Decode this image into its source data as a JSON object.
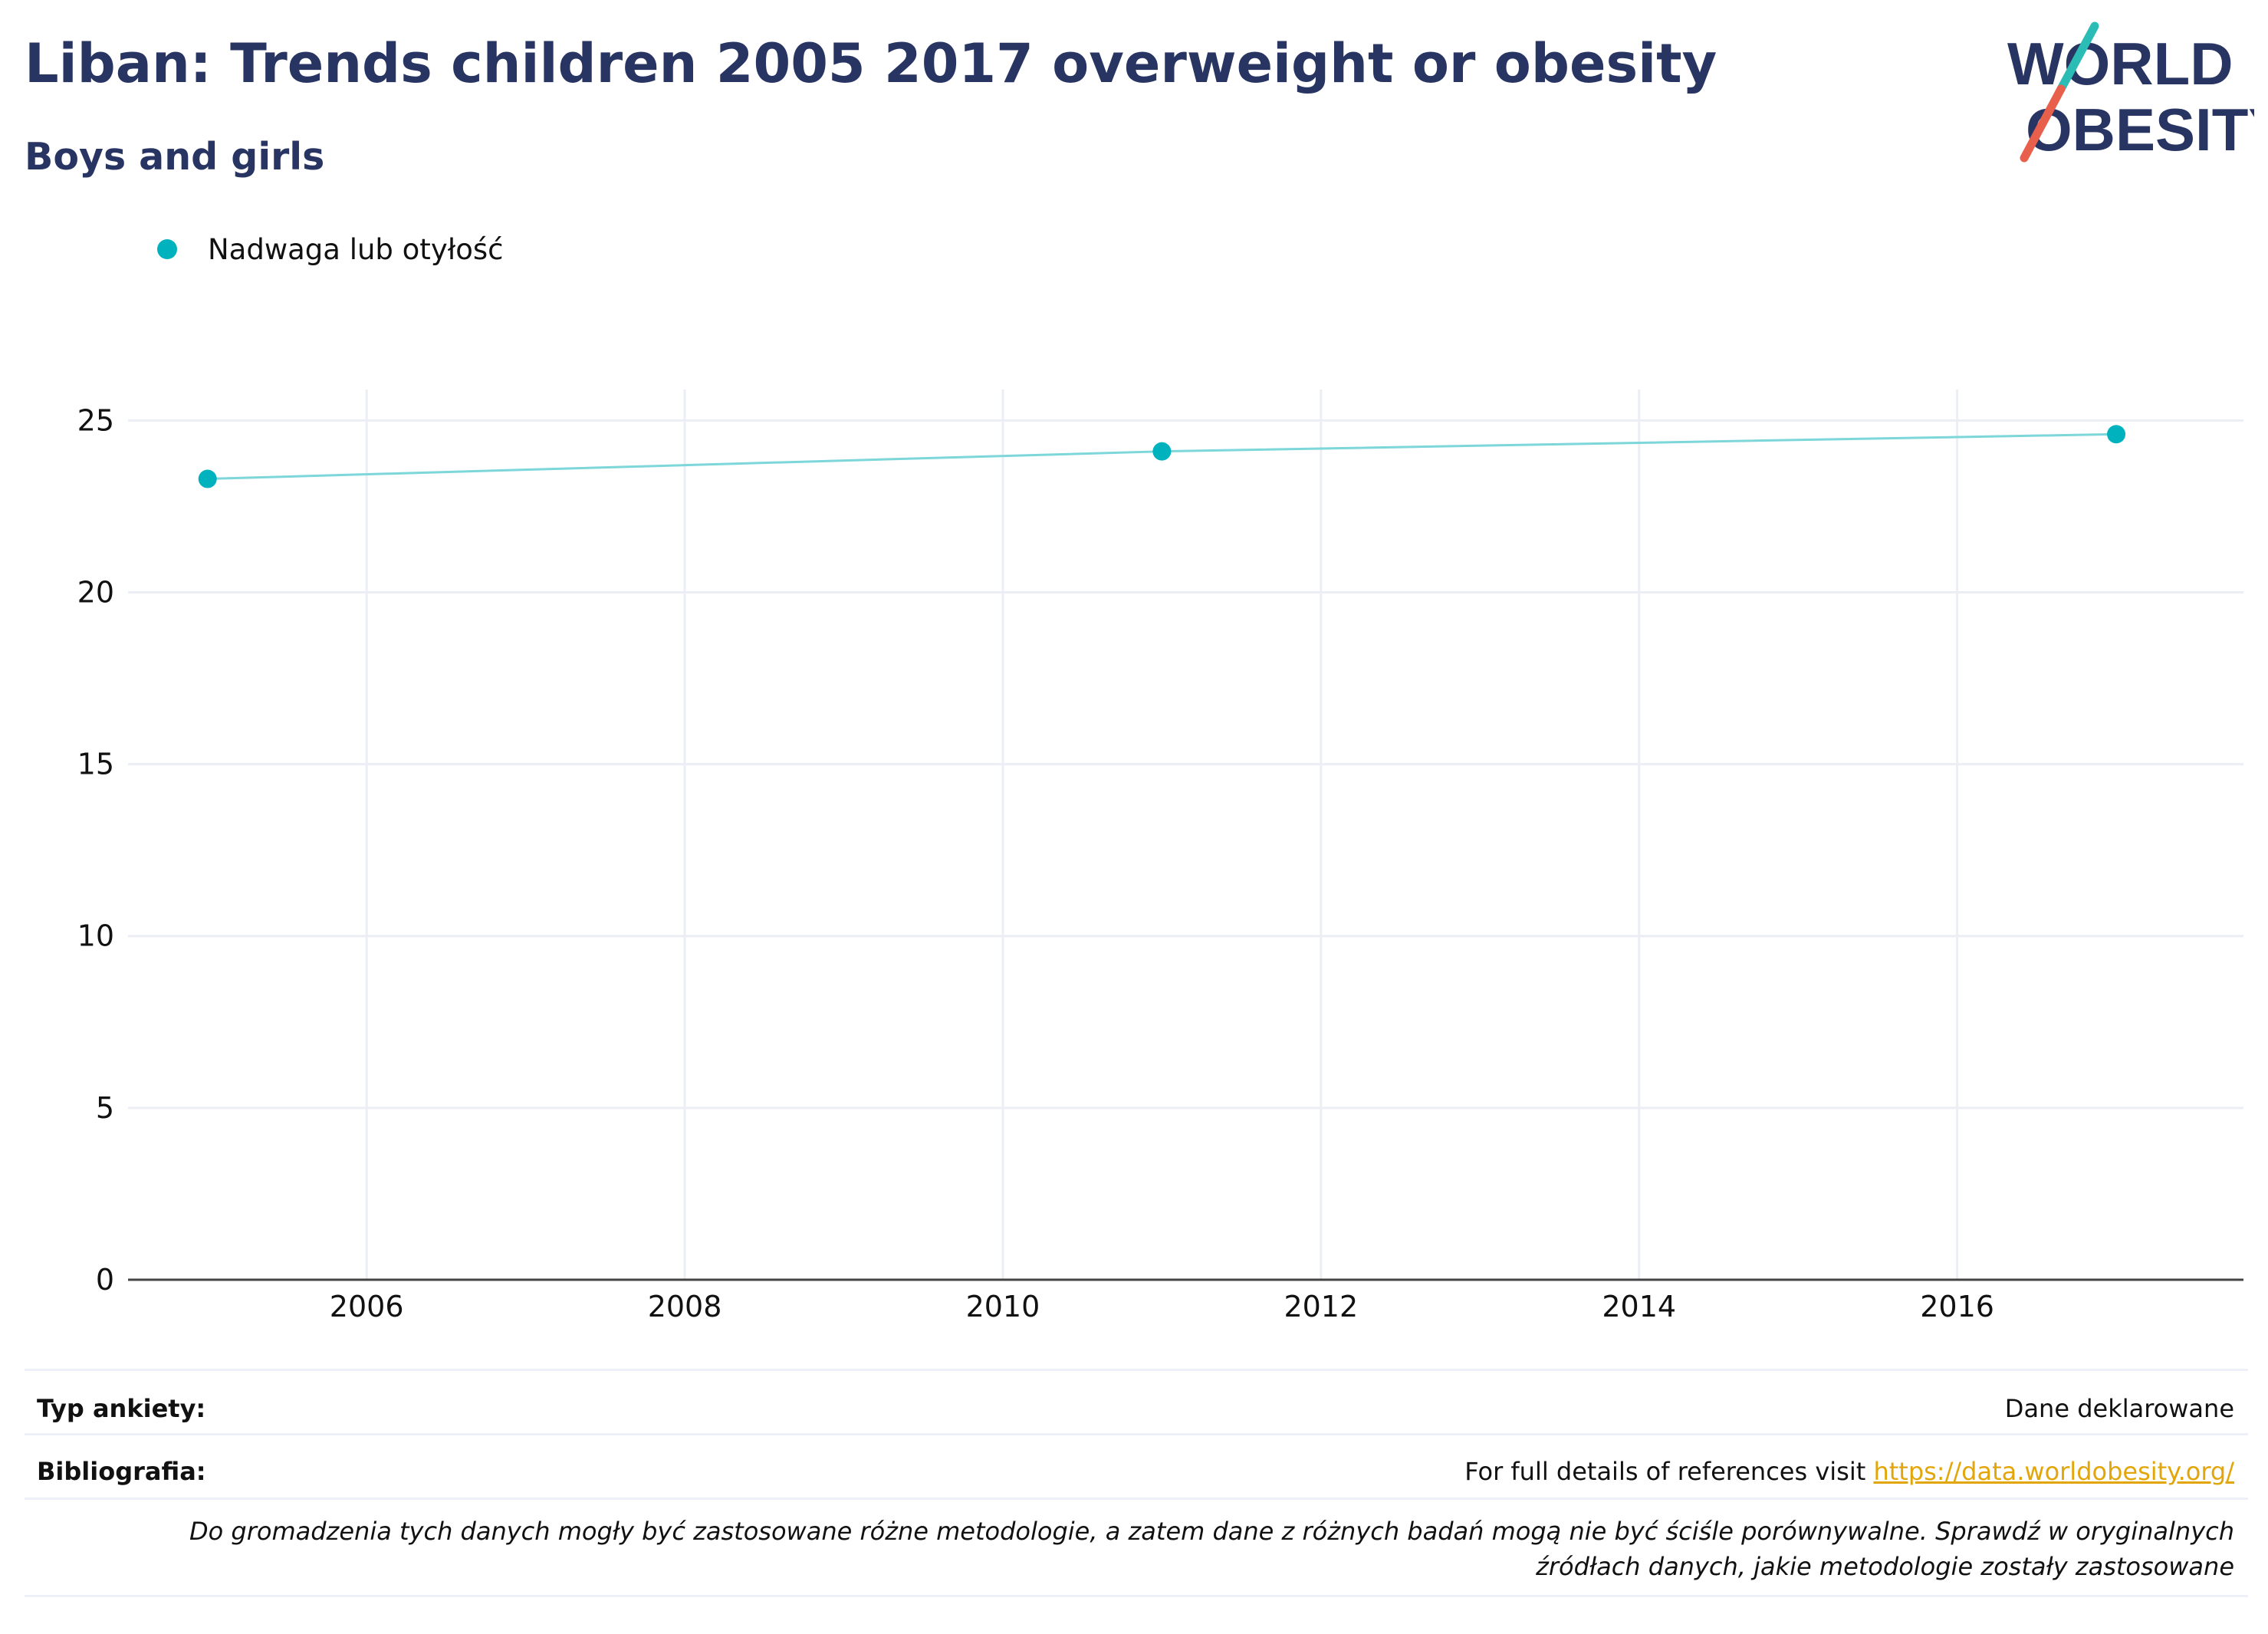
{
  "header": {
    "title": "Liban: Trends children 2005 2017 overweight or obesity",
    "subtitle": "Boys and girls"
  },
  "logo": {
    "line1": "WORLD",
    "line2": "OBESITY"
  },
  "colors": {
    "title": "#283563",
    "series": "#00b2bd",
    "line": "#7dd6da",
    "link": "#e3a60a",
    "logo_teal": "#2bbdb5",
    "logo_red": "#e8604c"
  },
  "chart_data": {
    "type": "line",
    "title": "Liban: Trends children 2005 2017 overweight or obesity",
    "subtitle": "Boys and girls",
    "series": [
      {
        "name": "Nadwaga lub otyłość",
        "x": [
          2005,
          2011,
          2017
        ],
        "y": [
          23.3,
          24.1,
          24.6
        ]
      }
    ],
    "xlim": [
      2004.5,
      2017.8
    ],
    "ylim": [
      0,
      25.9
    ],
    "xticks": [
      "2006",
      "2008",
      "2010",
      "2012",
      "2014",
      "2016"
    ],
    "yticks": [
      "0",
      "5",
      "10",
      "15",
      "20",
      "25"
    ],
    "grid": true,
    "legend": "top-left"
  },
  "info": {
    "survey_label": "Typ ankiety:",
    "survey_value": "Dane deklarowane",
    "bib_label": "Bibliografia:",
    "bib_text": "For full details of references visit",
    "bib_link": "https://data.worldobesity.org/",
    "note": "Do gromadzenia tych danych mogły być zastosowane różne metodologie, a zatem dane z różnych badań mogą nie być ściśle porównywalne. Sprawdź w oryginalnych źródłach danych, jakie metodologie zostały zastosowane"
  }
}
